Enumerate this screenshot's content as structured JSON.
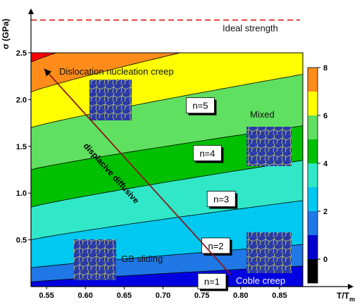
{
  "chart_data": {
    "type": "contour",
    "xlabel": "T/T",
    "xlabel_sub": "m",
    "ylabel": "σ (GPa)",
    "xlim": [
      0.53,
      0.88
    ],
    "ylim": [
      0.0,
      2.5
    ],
    "xticks": [
      "0.55",
      "0.60",
      "0.65",
      "0.70",
      "0.75",
      "0.80",
      "0.85"
    ],
    "xtick_values": [
      0.55,
      0.6,
      0.65,
      0.7,
      0.75,
      0.8,
      0.85
    ],
    "yticks": [
      "0.5",
      "1.0",
      "1.5",
      "2.0",
      "2.5"
    ],
    "ytick_values": [
      0.5,
      1.0,
      1.5,
      2.0,
      2.5
    ],
    "ideal_strength_label": "Ideal strength",
    "ideal_strength_value": 2.85,
    "colorbar": {
      "ticks": [
        "0",
        "2",
        "4",
        "6",
        "8"
      ],
      "levels": [
        -1,
        0,
        1,
        2,
        3,
        4,
        5,
        6,
        7,
        8
      ],
      "colors": [
        "#000000",
        "#0000d0",
        "#1f78e6",
        "#00c8f0",
        "#30e8c8",
        "#00c000",
        "#60e060",
        "#ffff00",
        "#ff8c1a",
        "#ff0000"
      ]
    },
    "contours": [
      {
        "n": 1,
        "y_at_xmin": 0.05,
        "y_at_xmax": 0.22
      },
      {
        "n": 2,
        "y_at_xmin": 0.2,
        "y_at_xmax": 0.45
      },
      {
        "n": 3,
        "y_at_xmin": 0.5,
        "y_at_xmax": 0.92
      },
      {
        "n": 4,
        "y_at_xmin": 0.85,
        "y_at_xmax": 1.35
      },
      {
        "n": 5,
        "y_at_xmin": 1.25,
        "y_at_xmax": 1.72
      },
      {
        "n": 6,
        "y_at_xmin": 1.7,
        "y_at_xmax": 2.27
      },
      {
        "n": 7,
        "y_at_xmin": 2.08,
        "y_at_xmax": 2.8
      },
      {
        "n": 8,
        "y_at_xmin": 2.4,
        "y_at_xmax": 3.25
      }
    ],
    "regions": [
      "Dislocation nucleation creep",
      "Mixed",
      "GB sliding",
      "Coble creep"
    ],
    "n_labels": [
      {
        "text": "n=1",
        "x": 0.763,
        "y": 0.05
      },
      {
        "text": "n=2",
        "x": 0.768,
        "y": 0.43
      },
      {
        "text": "n=3",
        "x": 0.775,
        "y": 0.93
      },
      {
        "text": "n=4",
        "x": 0.757,
        "y": 1.42
      },
      {
        "text": "n=5",
        "x": 0.748,
        "y": 1.93
      }
    ],
    "arrow": {
      "from": [
        0.787,
        0.13
      ],
      "to": [
        0.547,
        2.33
      ],
      "label": "displacive diffusive"
    }
  }
}
